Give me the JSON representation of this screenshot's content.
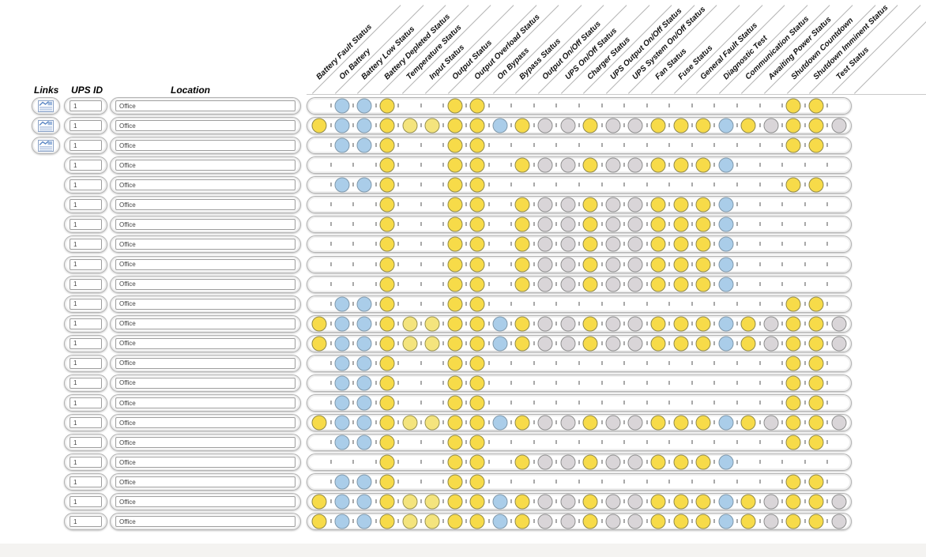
{
  "left_columns": {
    "links_header": "Links",
    "ups_id_header": "UPS ID",
    "location_header": "Location"
  },
  "status_columns": [
    "Battery Fault Status",
    "On Battery",
    "Battery Low Status",
    "Battery Depleted Status",
    "Temperature Status",
    "Input Status",
    "Output Status",
    "Output Overload Status",
    "On Bypass",
    "Bypass Status",
    "Output On/Off Status",
    "UPS On/Off Status",
    "Charger Status",
    "UPS Output On/Off Status",
    "UPS System On/Off Status",
    "Fan Status",
    "Fuse Status",
    "General Fault Status",
    "Diagnostic Test",
    "Communication Status",
    "Awaiting Power Status",
    "Shutdown Countdown",
    "Shutdown Imminent Status",
    "Test Status"
  ],
  "cell_colors": {
    "Y": "#f7db49",
    "y": "#f4e47d",
    "B": "#aacde9",
    "G": "#d9d5d8"
  },
  "patterns": {
    "A": [
      ".",
      "B",
      "B",
      "Y",
      ".",
      ".",
      "Y",
      "Y",
      ".",
      ".",
      ".",
      ".",
      ".",
      ".",
      ".",
      ".",
      ".",
      ".",
      ".",
      ".",
      ".",
      "Y",
      "Y",
      "."
    ],
    "B": [
      "Y",
      "B",
      "B",
      "Y",
      "y",
      "y",
      "Y",
      "Y",
      "B",
      "Y",
      "G",
      "G",
      "Y",
      "G",
      "G",
      "Y",
      "Y",
      "Y",
      "B",
      "Y",
      "G",
      "Y",
      "Y",
      "G"
    ],
    "C": [
      ".",
      ".",
      ".",
      "Y",
      ".",
      ".",
      "Y",
      "Y",
      ".",
      "Y",
      "G",
      "G",
      "Y",
      "G",
      "G",
      "Y",
      "Y",
      "Y",
      "B",
      ".",
      ".",
      ".",
      ".",
      "."
    ]
  },
  "rows": [
    {
      "has_link": true,
      "ups_id": "1",
      "location": "Office",
      "pattern": "A"
    },
    {
      "has_link": true,
      "ups_id": "1",
      "location": "Office",
      "pattern": "B"
    },
    {
      "has_link": true,
      "ups_id": "1",
      "location": "Office",
      "pattern": "A"
    },
    {
      "has_link": false,
      "ups_id": "1",
      "location": "Office",
      "pattern": "C"
    },
    {
      "has_link": false,
      "ups_id": "1",
      "location": "Office",
      "pattern": "A"
    },
    {
      "has_link": false,
      "ups_id": "1",
      "location": "Office",
      "pattern": "C"
    },
    {
      "has_link": false,
      "ups_id": "1",
      "location": "Office",
      "pattern": "C"
    },
    {
      "has_link": false,
      "ups_id": "1",
      "location": "Office",
      "pattern": "C"
    },
    {
      "has_link": false,
      "ups_id": "1",
      "location": "Office",
      "pattern": "C"
    },
    {
      "has_link": false,
      "ups_id": "1",
      "location": "Office",
      "pattern": "C"
    },
    {
      "has_link": false,
      "ups_id": "1",
      "location": "Office",
      "pattern": "A"
    },
    {
      "has_link": false,
      "ups_id": "1",
      "location": "Office",
      "pattern": "B"
    },
    {
      "has_link": false,
      "ups_id": "1",
      "location": "Office",
      "pattern": "B"
    },
    {
      "has_link": false,
      "ups_id": "1",
      "location": "Office",
      "pattern": "A"
    },
    {
      "has_link": false,
      "ups_id": "1",
      "location": "Office",
      "pattern": "A"
    },
    {
      "has_link": false,
      "ups_id": "1",
      "location": "Office",
      "pattern": "A"
    },
    {
      "has_link": false,
      "ups_id": "1",
      "location": "Office",
      "pattern": "B"
    },
    {
      "has_link": false,
      "ups_id": "1",
      "location": "Office",
      "pattern": "A"
    },
    {
      "has_link": false,
      "ups_id": "1",
      "location": "Office",
      "pattern": "C"
    },
    {
      "has_link": false,
      "ups_id": "1",
      "location": "Office",
      "pattern": "A"
    },
    {
      "has_link": false,
      "ups_id": "1",
      "location": "Office",
      "pattern": "B"
    },
    {
      "has_link": false,
      "ups_id": "1",
      "location": "Office",
      "pattern": "B"
    }
  ]
}
